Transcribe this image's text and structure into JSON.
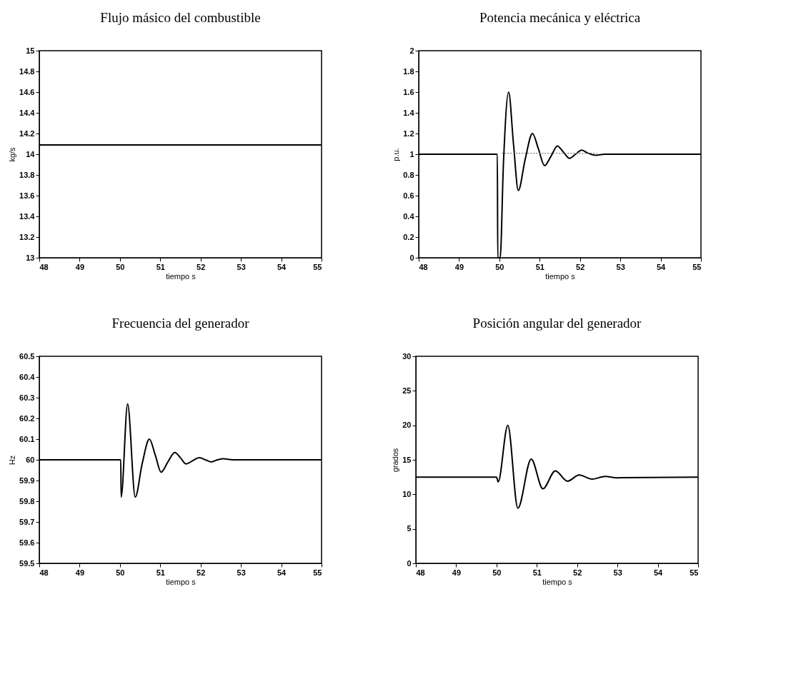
{
  "chart_data": [
    {
      "type": "line",
      "title": "Flujo másico del combustible",
      "xlabel": "tiempo s",
      "ylabel": "kg/s",
      "xlim": [
        48,
        55
      ],
      "xticks": [
        48,
        49,
        50,
        51,
        52,
        53,
        54,
        55
      ],
      "ylim": [
        13,
        15
      ],
      "yticks": [
        13,
        13.2,
        13.4,
        13.6,
        13.8,
        14,
        14.2,
        14.4,
        14.6,
        14.8,
        15
      ],
      "series": [
        {
          "color": "#000000",
          "x": [
            48,
            55
          ],
          "values": [
            14.09,
            14.09
          ]
        }
      ]
    },
    {
      "type": "line",
      "title": "Potencia mecánica y eléctrica",
      "xlabel": "tiempo s",
      "ylabel": "p.u.",
      "xlim": [
        48,
        55
      ],
      "xticks": [
        48,
        49,
        50,
        51,
        52,
        53,
        54,
        55
      ],
      "ylim": [
        0,
        2
      ],
      "yticks": [
        0,
        0.2,
        0.4,
        0.6,
        0.8,
        1,
        1.2,
        1.4,
        1.6,
        1.8,
        2
      ],
      "series": [
        {
          "color": "#000000",
          "x": [
            48,
            49.95,
            49.96,
            50.02,
            50.1,
            50.23,
            50.35,
            50.47,
            50.64,
            50.82,
            50.97,
            51.12,
            51.28,
            51.44,
            51.59,
            51.74,
            51.89,
            52.04,
            52.2,
            52.39,
            52.6,
            55
          ],
          "values": [
            1,
            1,
            0,
            0,
            0.9,
            1.6,
            1.1,
            0.65,
            0.95,
            1.2,
            1.05,
            0.89,
            0.98,
            1.08,
            1.02,
            0.96,
            1,
            1.04,
            1.01,
            0.99,
            1,
            1
          ]
        },
        {
          "color": "#777777",
          "line_style": "dotted",
          "x": [
            50.06,
            52.42
          ],
          "values": [
            1.01,
            1.01
          ]
        }
      ]
    },
    {
      "type": "line",
      "title": "Frecuencia del generador",
      "xlabel": "tiempo s",
      "ylabel": "Hz",
      "xlim": [
        48,
        55
      ],
      "xticks": [
        48,
        49,
        50,
        51,
        52,
        53,
        54,
        55
      ],
      "ylim": [
        59.5,
        60.5
      ],
      "yticks": [
        59.5,
        59.6,
        59.7,
        59.8,
        59.9,
        60,
        60.1,
        60.2,
        60.3,
        60.4,
        60.5
      ],
      "series": [
        {
          "color": "#000000",
          "x": [
            48,
            50.02,
            50.03,
            50.19,
            50.38,
            50.55,
            50.73,
            50.88,
            51.02,
            51.19,
            51.36,
            51.5,
            51.64,
            51.8,
            51.97,
            52.12,
            52.26,
            52.42,
            52.56,
            52.8,
            55
          ],
          "values": [
            60,
            60,
            59.82,
            60.27,
            59.82,
            59.98,
            60.1,
            60.02,
            59.94,
            59.99,
            60.035,
            60.01,
            59.98,
            59.995,
            60.01,
            60,
            59.99,
            60,
            60.005,
            60,
            60
          ]
        }
      ]
    },
    {
      "type": "line",
      "title": "Posición angular del generador",
      "xlabel": "tiempo s",
      "ylabel": "grados",
      "xlim": [
        48,
        55
      ],
      "xticks": [
        48,
        49,
        50,
        51,
        52,
        53,
        54,
        55
      ],
      "ylim": [
        0,
        30
      ],
      "yticks": [
        0,
        5,
        10,
        15,
        20,
        25,
        30
      ],
      "series": [
        {
          "color": "#000000",
          "x": [
            48,
            50,
            50.04,
            50.28,
            50.53,
            50.86,
            51.15,
            51.46,
            51.76,
            52.05,
            52.37,
            52.7,
            52.98,
            55
          ],
          "values": [
            12.5,
            12.5,
            11.8,
            20,
            8,
            15.1,
            10.8,
            13.4,
            11.9,
            12.8,
            12.2,
            12.6,
            12.4,
            12.5
          ]
        }
      ]
    }
  ]
}
